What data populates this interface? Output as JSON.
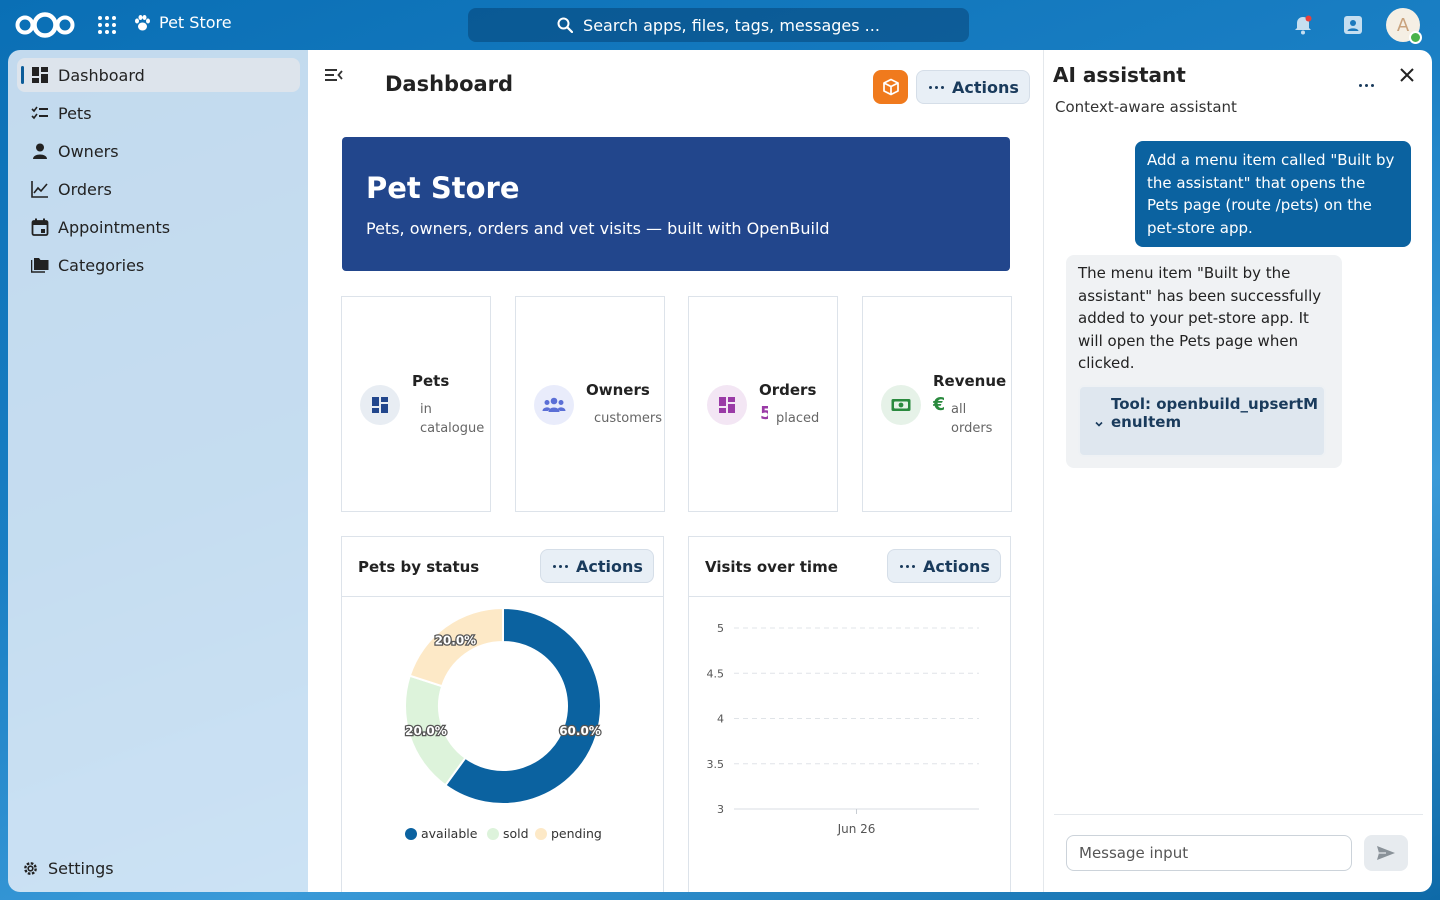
{
  "header": {
    "app_name": "Pet Store",
    "search_placeholder": "Search apps, files, tags, messages ...",
    "avatar_initial": "A"
  },
  "sidebar": {
    "items": [
      {
        "label": "Dashboard",
        "icon": "dashboard-icon",
        "active": true
      },
      {
        "label": "Pets",
        "icon": "checklist-icon"
      },
      {
        "label": "Owners",
        "icon": "person-icon"
      },
      {
        "label": "Orders",
        "icon": "chart-line-icon"
      },
      {
        "label": "Appointments",
        "icon": "calendar-icon"
      },
      {
        "label": "Categories",
        "icon": "folders-icon"
      }
    ],
    "settings_label": "Settings"
  },
  "main": {
    "title": "Dashboard",
    "actions_label": "Actions",
    "hero": {
      "title": "Pet Store",
      "subtitle": "Pets, owners, orders and vet visits — built with OpenBuild"
    },
    "stats": [
      {
        "title": "Pets",
        "sub": "in catalogue",
        "icon": "dashboard-icon"
      },
      {
        "title": "Owners",
        "sub": "customers",
        "icon": "group-icon"
      },
      {
        "title": "Orders",
        "value": "5",
        "sub": "placed",
        "icon": "dashboard-icon"
      },
      {
        "title": "Revenue",
        "value": "€",
        "sub": "all orders",
        "icon": "cash-icon"
      }
    ],
    "panels": {
      "status_title": "Pets by status",
      "visits_title": "Visits over time"
    }
  },
  "chart_data": [
    {
      "type": "pie",
      "variant": "donut",
      "title": "Pets by status",
      "categories": [
        "available",
        "sold",
        "pending"
      ],
      "values": [
        60.0,
        20.0,
        20.0
      ],
      "data_labels": [
        "60.0%",
        "20.0%",
        "20.0%"
      ],
      "colors": [
        "#0b62a0",
        "#ddf3db",
        "#fde9c7"
      ],
      "legend": "bottom"
    },
    {
      "type": "line",
      "title": "Visits over time",
      "x": [
        "Jun 26"
      ],
      "yticks": [
        "5",
        "4.5",
        "4",
        "3.5",
        "3"
      ],
      "ylim": [
        3,
        5
      ],
      "grid": true
    }
  ],
  "assistant": {
    "title": "AI assistant",
    "subtitle": "Context-aware assistant",
    "user_message": "Add a menu item called \"Built by the assistant\" that opens the Pets page (route /pets) on the pet-store app.",
    "bot_message": "The menu item \"Built by the assistant\" has been successfully added to your pet-store app. It will open the Pets page when clicked.",
    "tool_label": "Tool: openbuild_upsertMenuItem",
    "input_placeholder": "Message input"
  },
  "colors": {
    "primary": "#0b62a0",
    "hero": "#22468c",
    "accent_orange": "#f07a1d"
  }
}
